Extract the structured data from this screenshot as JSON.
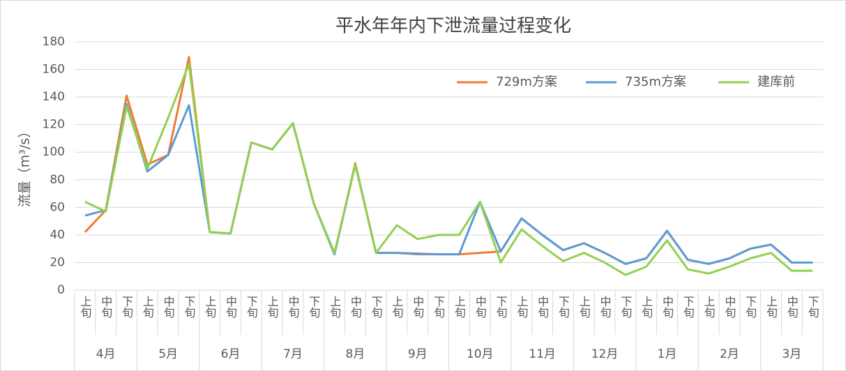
{
  "chart_data": {
    "type": "line",
    "title": "平水年年内下泄流量过程变化",
    "y_label": "流量（m³/s）",
    "categories": [
      "上旬",
      "中旬",
      "下旬",
      "上旬",
      "中旬",
      "下旬",
      "上旬",
      "中旬",
      "下旬",
      "上旬",
      "中旬",
      "下旬",
      "上旬",
      "中旬",
      "下旬",
      "上旬",
      "中旬",
      "下旬",
      "上旬",
      "中旬",
      "下旬",
      "上旬",
      "中旬",
      "下旬",
      "上旬",
      "中旬",
      "下旬",
      "上旬",
      "中旬",
      "下旬",
      "上旬",
      "中旬",
      "下旬",
      "上旬",
      "中旬",
      "下旬"
    ],
    "groups": [
      "4月",
      "5月",
      "6月",
      "7月",
      "8月",
      "9月",
      "10月",
      "11月",
      "12月",
      "1月",
      "2月",
      "3月"
    ],
    "series": [
      {
        "name": "729m方案",
        "color": "#ed7d31",
        "values": [
          42,
          58,
          141,
          91,
          98,
          169,
          42,
          41,
          107,
          102,
          121,
          63,
          26,
          92,
          27,
          27,
          26,
          26,
          26,
          27,
          28,
          52,
          40,
          29,
          34,
          27,
          19,
          23,
          43,
          22,
          19,
          23,
          30,
          33,
          20,
          20
        ]
      },
      {
        "name": "735m方案",
        "color": "#5b9bd5",
        "values": [
          54,
          58,
          135,
          86,
          98,
          134,
          42,
          41,
          107,
          102,
          121,
          63,
          26,
          91,
          27,
          27,
          26.5,
          26,
          26,
          64,
          28,
          52,
          40,
          29,
          34,
          27,
          19,
          23,
          43,
          22,
          19,
          23,
          30,
          33,
          20,
          20
        ]
      },
      {
        "name": "建库前",
        "color": "#92d050",
        "values": [
          64,
          57,
          133,
          88,
          125,
          164,
          42,
          41,
          107,
          102,
          121,
          63,
          27,
          91,
          27,
          47,
          37,
          40,
          40,
          64,
          20,
          44,
          32,
          21,
          27,
          20,
          11,
          17,
          36,
          15,
          12,
          17,
          23,
          27,
          14,
          14
        ]
      }
    ],
    "ylim": [
      0,
      180
    ],
    "yticks": [
      0,
      20,
      40,
      60,
      80,
      100,
      120,
      140,
      160,
      180
    ],
    "grid": true,
    "legend": "top-right"
  }
}
